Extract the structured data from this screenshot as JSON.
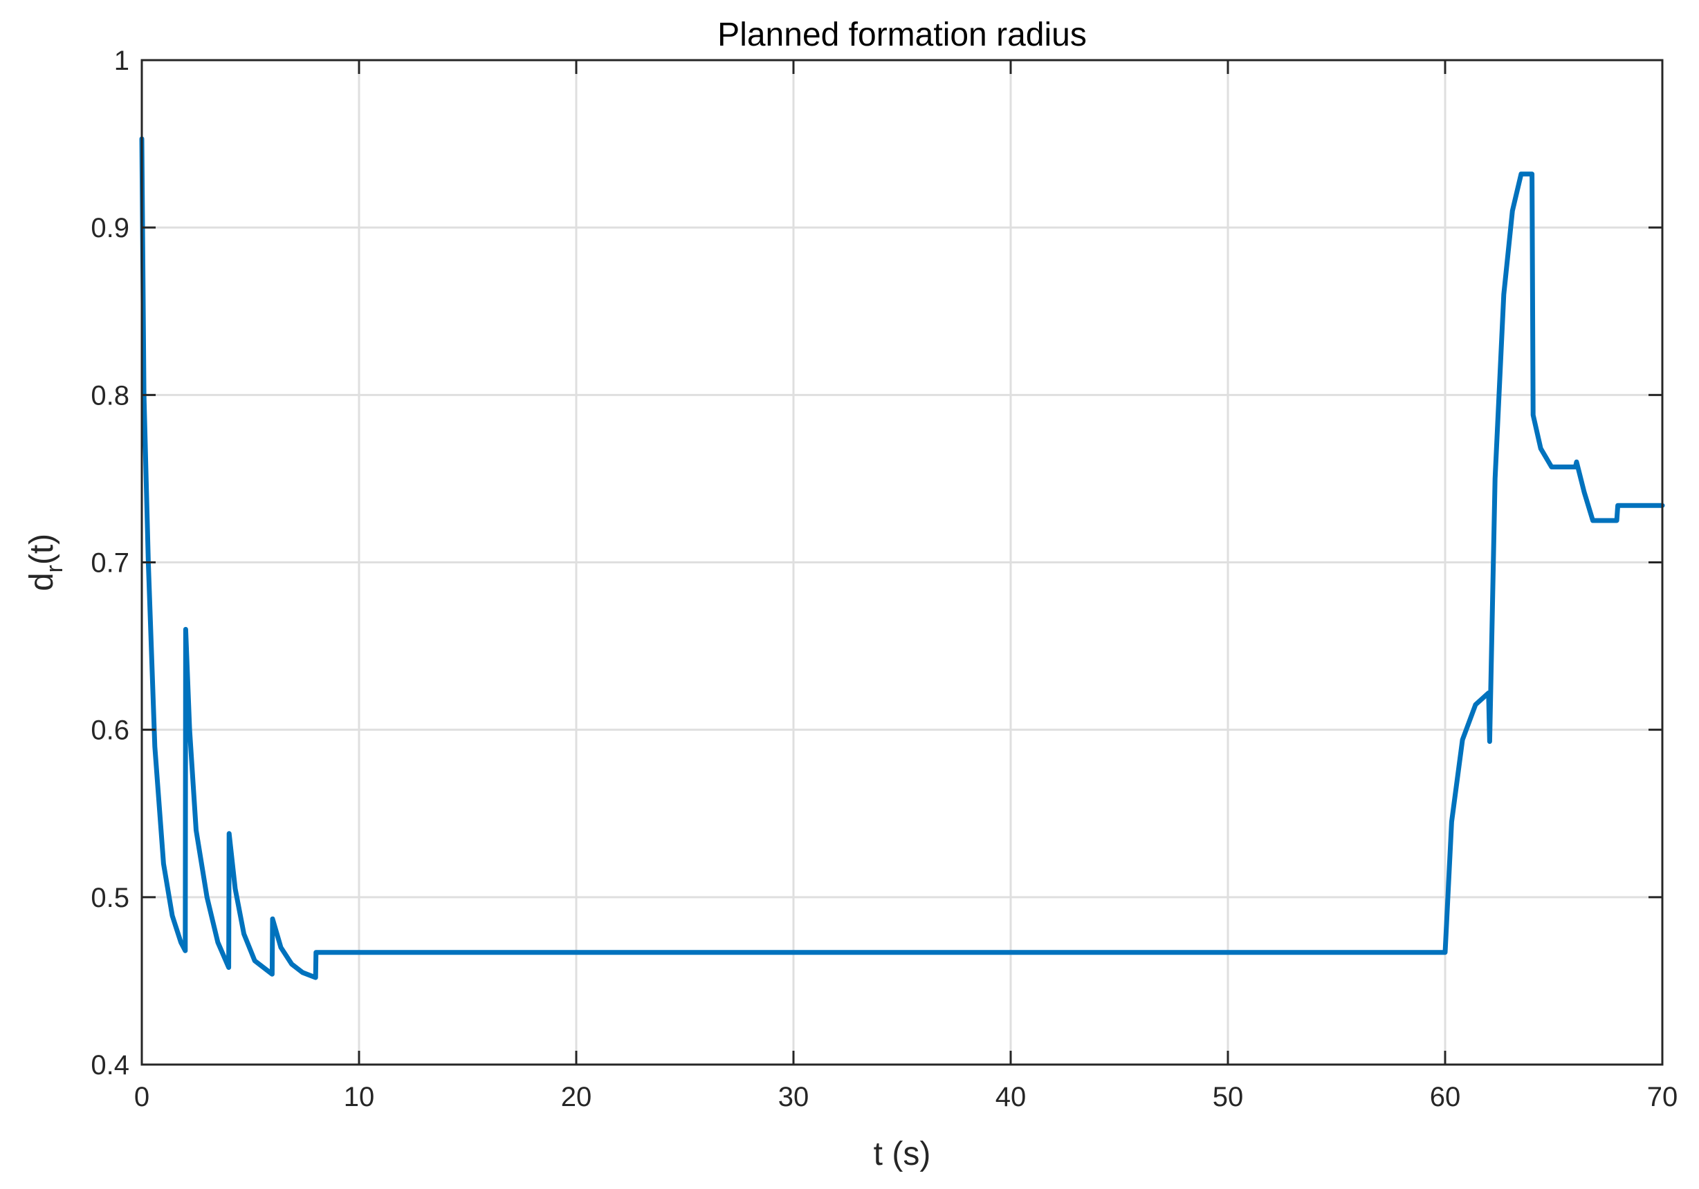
{
  "chart_data": {
    "type": "line",
    "title": "Planned formation radius",
    "xlabel": "t (s)",
    "ylabel": {
      "main": "d",
      "subscript": "r",
      "suffix": "(t)"
    },
    "xlim": [
      0,
      70
    ],
    "ylim": [
      0.4,
      1
    ],
    "xticks": [
      0,
      10,
      20,
      30,
      40,
      50,
      60,
      70
    ],
    "yticks": [
      0.4,
      0.5,
      0.6,
      0.7,
      0.8,
      0.9,
      1
    ],
    "xtick_labels": [
      "0",
      "10",
      "20",
      "30",
      "40",
      "50",
      "60",
      "70"
    ],
    "ytick_labels": [
      "0.4",
      "0.5",
      "0.6",
      "0.7",
      "0.8",
      "0.9",
      "1"
    ],
    "grid": true,
    "colors": {
      "series": "#0072bd",
      "axes": "#262626",
      "grid": "#dfdfdf"
    },
    "series": [
      {
        "x": [
          0,
          0.1,
          0.3,
          0.6,
          1.0,
          1.4,
          1.8,
          2.0,
          2.02,
          2.2,
          2.5,
          3.0,
          3.5,
          4.0,
          4.02,
          4.3,
          4.7,
          5.2,
          6.0,
          6.02,
          6.4,
          6.9,
          7.4,
          8.0,
          8.02,
          60.0,
          60.3,
          60.8,
          61.4,
          62.0,
          62.05,
          62.3,
          62.7,
          63.1,
          63.5,
          64.0,
          64.05,
          64.4,
          64.9,
          65.5,
          66.0,
          66.05,
          66.4,
          66.8,
          67.9,
          67.95,
          70.0
        ],
        "y": [
          0.953,
          0.8,
          0.7,
          0.59,
          0.52,
          0.489,
          0.473,
          0.468,
          0.66,
          0.6,
          0.54,
          0.5,
          0.473,
          0.458,
          0.538,
          0.505,
          0.478,
          0.462,
          0.454,
          0.487,
          0.47,
          0.46,
          0.455,
          0.452,
          0.467,
          0.467,
          0.545,
          0.594,
          0.615,
          0.622,
          0.593,
          0.75,
          0.86,
          0.91,
          0.932,
          0.932,
          0.788,
          0.768,
          0.757,
          0.757,
          0.757,
          0.76,
          0.742,
          0.725,
          0.725,
          0.734,
          0.734
        ]
      }
    ]
  }
}
